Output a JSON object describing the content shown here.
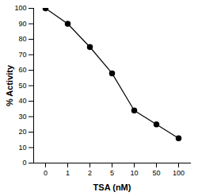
{
  "chart_data": {
    "type": "line",
    "categories": [
      "0",
      "1",
      "2",
      "5",
      "10",
      "50",
      "100"
    ],
    "values": [
      100,
      90,
      75,
      58,
      34,
      25,
      16
    ],
    "x_label": "TSA (nM)",
    "y_label": "% Activity",
    "color": "#000000",
    "marker": "circle",
    "line_style": "solid",
    "ylim": [
      0,
      100
    ],
    "yticks": [
      0,
      10,
      20,
      30,
      40,
      50,
      60,
      70,
      80,
      90,
      100
    ],
    "grid": false
  }
}
